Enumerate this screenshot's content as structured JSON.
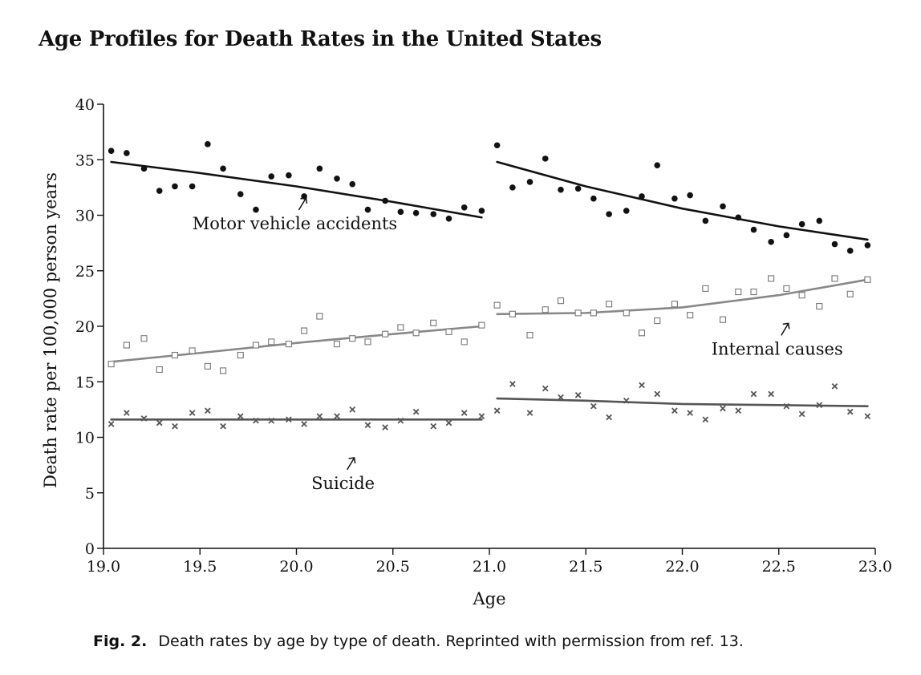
{
  "caption": {
    "label": "Fig. 2.",
    "text": "Death rates by age by type of death. Reprinted with permission from ref. 13."
  },
  "chart_data": {
    "type": "scatter",
    "title": "Age Profiles for Death Rates in the United States",
    "xlabel": "Age",
    "ylabel": "Death rate per 100,000 person years",
    "xlim": [
      19.0,
      23.0
    ],
    "ylim": [
      0,
      40
    ],
    "xticks": [
      "19.0",
      "19.5",
      "20.0",
      "20.5",
      "21.0",
      "21.5",
      "22.0",
      "22.5",
      "23.0"
    ],
    "yticks": [
      "0",
      "5",
      "10",
      "15",
      "20",
      "25",
      "30",
      "35",
      "40"
    ],
    "grid": false,
    "legend": "none",
    "series": [
      {
        "name": "Motor vehicle accidents",
        "marker": "filled-circle",
        "color": "#111111",
        "fit_color": "#111111",
        "x": [
          19.04,
          19.12,
          19.21,
          19.29,
          19.37,
          19.46,
          19.54,
          19.62,
          19.71,
          19.79,
          19.87,
          19.96,
          20.04,
          20.12,
          20.21,
          20.29,
          20.37,
          20.46,
          20.54,
          20.62,
          20.71,
          20.79,
          20.87,
          20.96,
          21.04,
          21.12,
          21.21,
          21.29,
          21.37,
          21.46,
          21.54,
          21.62,
          21.71,
          21.79,
          21.87,
          21.96,
          22.04,
          22.12,
          22.21,
          22.29,
          22.37,
          22.46,
          22.54,
          22.62,
          22.71,
          22.79,
          22.87,
          22.96
        ],
        "y": [
          35.8,
          35.6,
          34.2,
          32.2,
          32.6,
          32.6,
          36.4,
          34.2,
          31.9,
          30.5,
          33.5,
          33.6,
          31.7,
          34.2,
          33.3,
          32.8,
          30.5,
          31.3,
          30.3,
          30.2,
          30.1,
          29.7,
          30.7,
          30.4,
          36.3,
          32.5,
          33.0,
          35.1,
          32.3,
          32.4,
          31.5,
          30.1,
          30.4,
          31.7,
          34.5,
          31.5,
          31.8,
          29.5,
          30.8,
          29.8,
          28.7,
          27.6,
          28.2,
          29.2,
          29.5,
          27.4,
          26.8,
          27.3
        ],
        "fit": [
          {
            "x": [
              19.04,
              19.5,
              20.0,
              20.5,
              20.96
            ],
            "y": [
              34.8,
              33.8,
              32.6,
              31.2,
              29.8
            ]
          },
          {
            "x": [
              21.04,
              21.5,
              22.0,
              22.5,
              22.96
            ],
            "y": [
              34.8,
              32.6,
              30.6,
              29.0,
              27.8
            ]
          }
        ],
        "annotation": {
          "text": "Motor vehicle accidents",
          "x": 20.0,
          "y": 29.9
        }
      },
      {
        "name": "Internal causes",
        "marker": "open-square",
        "color": "#777777",
        "fit_color": "#888888",
        "x": [
          19.04,
          19.12,
          19.21,
          19.29,
          19.37,
          19.46,
          19.54,
          19.62,
          19.71,
          19.79,
          19.87,
          19.96,
          20.04,
          20.12,
          20.21,
          20.29,
          20.37,
          20.46,
          20.54,
          20.62,
          20.71,
          20.79,
          20.87,
          20.96,
          21.04,
          21.12,
          21.21,
          21.29,
          21.37,
          21.46,
          21.54,
          21.62,
          21.71,
          21.79,
          21.87,
          21.96,
          22.04,
          22.12,
          22.21,
          22.29,
          22.37,
          22.46,
          22.54,
          22.62,
          22.71,
          22.79,
          22.87,
          22.96
        ],
        "y": [
          16.6,
          18.3,
          18.9,
          16.1,
          17.4,
          17.8,
          16.4,
          16.0,
          17.4,
          18.3,
          18.6,
          18.4,
          19.6,
          20.9,
          18.4,
          18.9,
          18.6,
          19.3,
          19.9,
          19.4,
          20.3,
          19.5,
          18.6,
          20.1,
          21.9,
          21.1,
          19.2,
          21.5,
          22.3,
          21.2,
          21.2,
          22.0,
          21.2,
          19.4,
          20.5,
          22.0,
          21.0,
          23.4,
          20.6,
          23.1,
          23.1,
          24.3,
          23.4,
          22.8,
          21.8,
          24.3,
          22.9,
          24.2
        ],
        "fit": [
          {
            "x": [
              19.04,
              19.5,
              20.0,
              20.5,
              20.96
            ],
            "y": [
              16.8,
              17.6,
              18.5,
              19.3,
              20.0
            ]
          },
          {
            "x": [
              21.04,
              21.5,
              22.0,
              22.5,
              22.96
            ],
            "y": [
              21.1,
              21.2,
              21.7,
              22.8,
              24.2
            ]
          }
        ],
        "annotation": {
          "text": "Internal causes",
          "x": 22.5,
          "y": 18.6
        }
      },
      {
        "name": "Suicide",
        "marker": "x-cross",
        "color": "#555555",
        "fit_color": "#555555",
        "x": [
          19.04,
          19.12,
          19.21,
          19.29,
          19.37,
          19.46,
          19.54,
          19.62,
          19.71,
          19.79,
          19.87,
          19.96,
          20.04,
          20.12,
          20.21,
          20.29,
          20.37,
          20.46,
          20.54,
          20.62,
          20.71,
          20.79,
          20.87,
          20.96,
          21.04,
          21.12,
          21.21,
          21.29,
          21.37,
          21.46,
          21.54,
          21.62,
          21.71,
          21.79,
          21.87,
          21.96,
          22.04,
          22.12,
          22.21,
          22.29,
          22.37,
          22.46,
          22.54,
          22.62,
          22.71,
          22.79,
          22.87,
          22.96
        ],
        "y": [
          11.2,
          12.2,
          11.7,
          11.3,
          11.0,
          12.2,
          12.4,
          11.0,
          11.9,
          11.5,
          11.5,
          11.6,
          11.2,
          11.9,
          11.9,
          12.5,
          11.1,
          10.9,
          11.5,
          12.3,
          11.0,
          11.3,
          12.2,
          11.9,
          12.4,
          14.8,
          12.2,
          14.4,
          13.6,
          13.8,
          12.8,
          11.8,
          13.3,
          14.7,
          13.9,
          12.4,
          12.2,
          11.6,
          12.6,
          12.4,
          13.9,
          13.9,
          12.8,
          12.1,
          12.9,
          14.6,
          12.3,
          11.9
        ],
        "fit": [
          {
            "x": [
              19.04,
              19.5,
              20.0,
              20.5,
              20.96
            ],
            "y": [
              11.6,
              11.6,
              11.6,
              11.6,
              11.6
            ]
          },
          {
            "x": [
              21.04,
              21.5,
              22.0,
              22.5,
              22.96
            ],
            "y": [
              13.5,
              13.3,
              13.0,
              12.9,
              12.8
            ]
          }
        ],
        "annotation": {
          "text": "Suicide",
          "x": 20.25,
          "y": 6.5
        }
      }
    ]
  }
}
